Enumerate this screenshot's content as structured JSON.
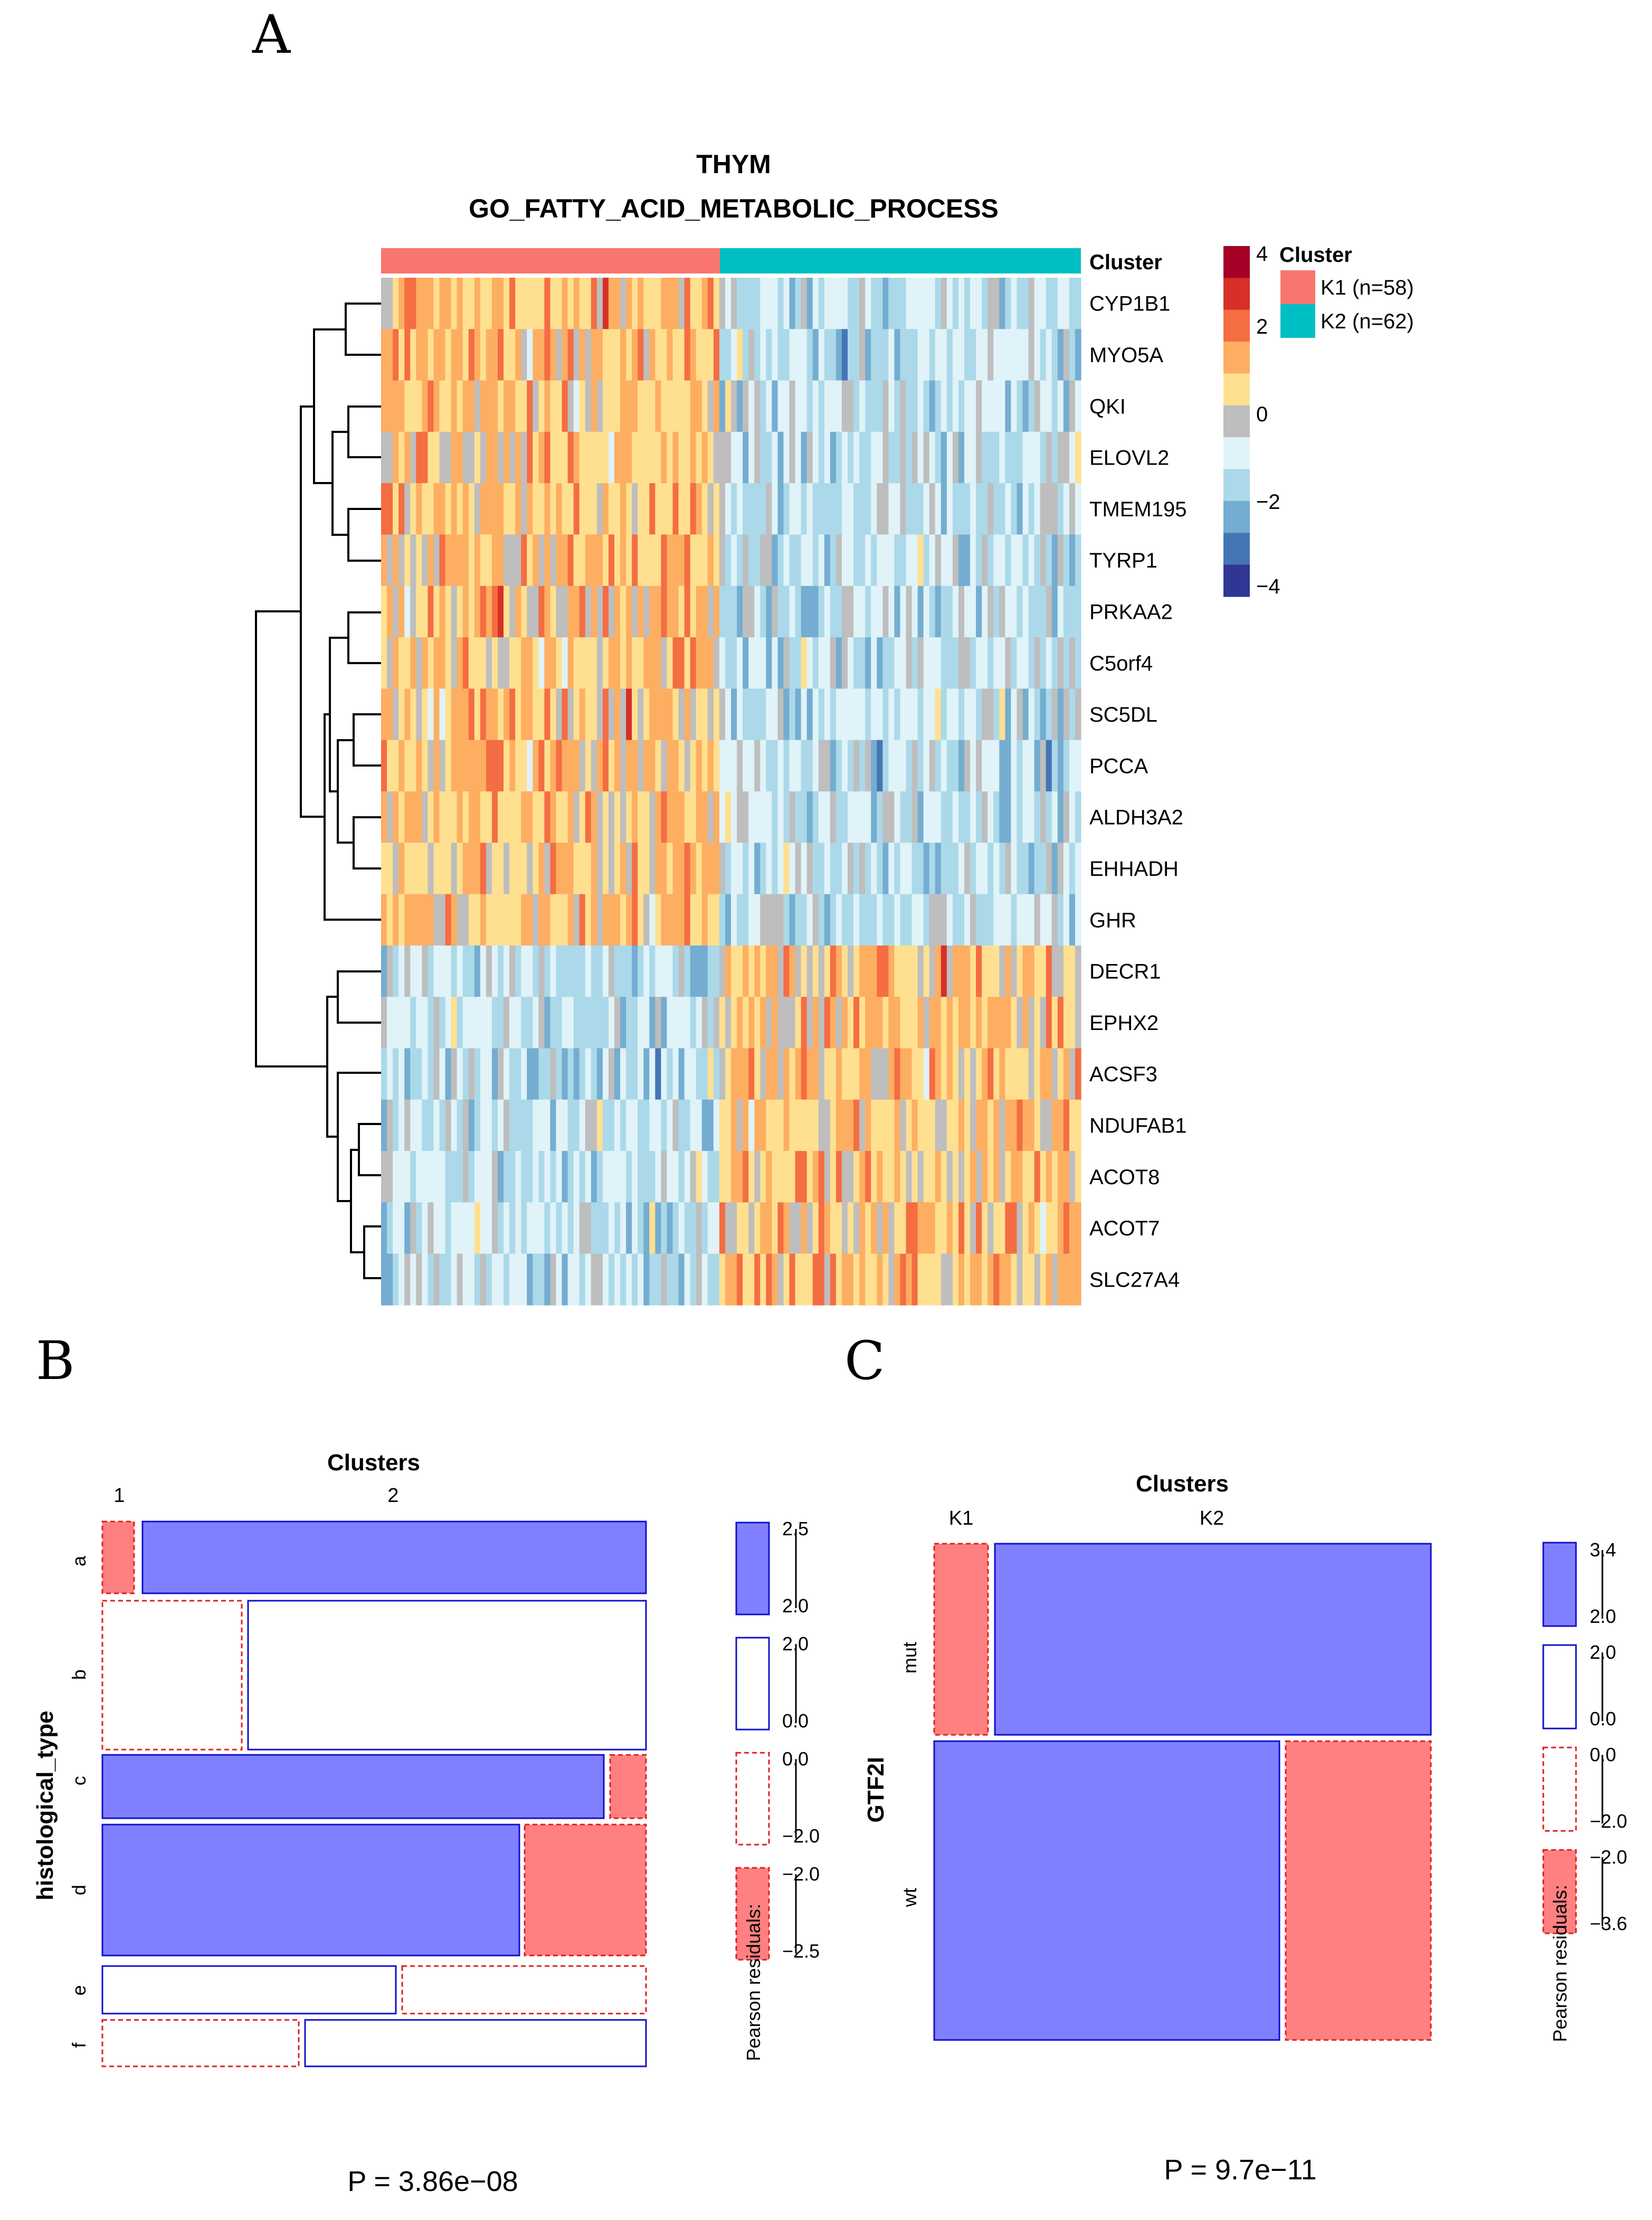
{
  "panel_labels": {
    "a": "A",
    "b": "B",
    "c": "C"
  },
  "colors": {
    "k1": "#F8766D",
    "k2": "#00BFC4",
    "mosaic_blue": "#8080FF",
    "mosaic_red": "#FF8080",
    "mosaic_blue_border": "#1010CC",
    "mosaic_red_border": "#DD2020",
    "expression_scale": [
      "#313695",
      "#4575B4",
      "#74ADD1",
      "#ABD9E9",
      "#E0F3F8",
      "#BEBEBE",
      "#FEE090",
      "#FDAE61",
      "#F46D43",
      "#D73027",
      "#A50026"
    ]
  },
  "chart_data": [
    {
      "type": "heatmap",
      "title_line1": "THYM",
      "title_line2": "GO_FATTY_ACID_METABOLIC_PROCESS",
      "annotation_label": "Cluster",
      "genes": [
        "CYP1B1",
        "MYO5A",
        "QKI",
        "ELOVL2",
        "TMEM195",
        "TYRP1",
        "PRKAA2",
        "C5orf4",
        "SC5DL",
        "PCCA",
        "ALDH3A2",
        "EHHADH",
        "GHR",
        "DECR1",
        "EPHX2",
        "ACSF3",
        "NDUFAB1",
        "ACOT8",
        "ACOT7",
        "SLC27A4"
      ],
      "gene_direction": [
        -1,
        -1,
        -1,
        -1,
        -1,
        -1,
        -1,
        -1,
        -1,
        -1,
        -1,
        -1,
        -1,
        1,
        1,
        1,
        1,
        1,
        1,
        1
      ],
      "clusters": [
        {
          "name": "K1",
          "n": 58,
          "label": "K1 (n=58)"
        },
        {
          "name": "K2",
          "n": 62,
          "label": "K2 (n=62)"
        }
      ],
      "legend_title": "Cluster",
      "color_scale": {
        "min": -4,
        "max": 4,
        "tick_values": [
          4,
          2,
          0,
          -2,
          -4
        ],
        "tick_labels": [
          "4",
          "2",
          "0",
          "−2",
          "−4"
        ]
      }
    },
    {
      "type": "mosaic",
      "title": "Clusters",
      "column_labels": [
        "1",
        "2"
      ],
      "row_title": "histological_type",
      "rows": [
        {
          "label": "a",
          "cells": [
            {
              "col": "1",
              "sign": "neg"
            },
            {
              "col": "2",
              "sign": "pos"
            }
          ]
        },
        {
          "label": "b",
          "cells": [
            {
              "col": "1",
              "sign": "neg_weak"
            },
            {
              "col": "2",
              "sign": "pos_weak"
            }
          ]
        },
        {
          "label": "c",
          "cells": [
            {
              "col": "1",
              "sign": "pos"
            },
            {
              "col": "2",
              "sign": "neg"
            }
          ]
        },
        {
          "label": "d",
          "cells": [
            {
              "col": "1",
              "sign": "pos"
            },
            {
              "col": "2",
              "sign": "neg"
            }
          ]
        },
        {
          "label": "e",
          "cells": [
            {
              "col": "1",
              "sign": "pos_weak"
            },
            {
              "col": "2",
              "sign": "neg_weak"
            }
          ]
        },
        {
          "label": "f",
          "cells": [
            {
              "col": "1",
              "sign": "neg_weak"
            },
            {
              "col": "2",
              "sign": "pos_weak"
            }
          ]
        }
      ],
      "legend": {
        "title": "Pearson residuals:",
        "bins": [
          {
            "sign": "pos",
            "hi": "2.5",
            "lo": "2.0"
          },
          {
            "sign": "pos_weak",
            "hi": "2.0",
            "lo": "0.0"
          },
          {
            "sign": "neg_weak",
            "hi": "0.0",
            "lo": "−2.0"
          },
          {
            "sign": "neg",
            "hi": "−2.0",
            "lo": "−2.5"
          }
        ]
      },
      "p_value": "P = 3.86e−08"
    },
    {
      "type": "mosaic",
      "title": "Clusters",
      "column_labels": [
        "K1",
        "K2"
      ],
      "row_title": "GTF2I",
      "rows": [
        {
          "label": "mut",
          "cells": [
            {
              "col": "K1",
              "sign": "neg"
            },
            {
              "col": "K2",
              "sign": "pos"
            }
          ]
        },
        {
          "label": "wt",
          "cells": [
            {
              "col": "K1",
              "sign": "pos"
            },
            {
              "col": "K2",
              "sign": "neg"
            }
          ]
        }
      ],
      "legend": {
        "title": "Pearson residuals:",
        "bins": [
          {
            "sign": "pos",
            "hi": "3.4",
            "lo": "2.0"
          },
          {
            "sign": "pos_weak",
            "hi": "2.0",
            "lo": "0.0"
          },
          {
            "sign": "neg_weak",
            "hi": "0.0",
            "lo": "−2.0"
          },
          {
            "sign": "neg",
            "hi": "−2.0",
            "lo": "−3.6"
          }
        ]
      },
      "p_value": "P = 9.7e−11"
    }
  ]
}
